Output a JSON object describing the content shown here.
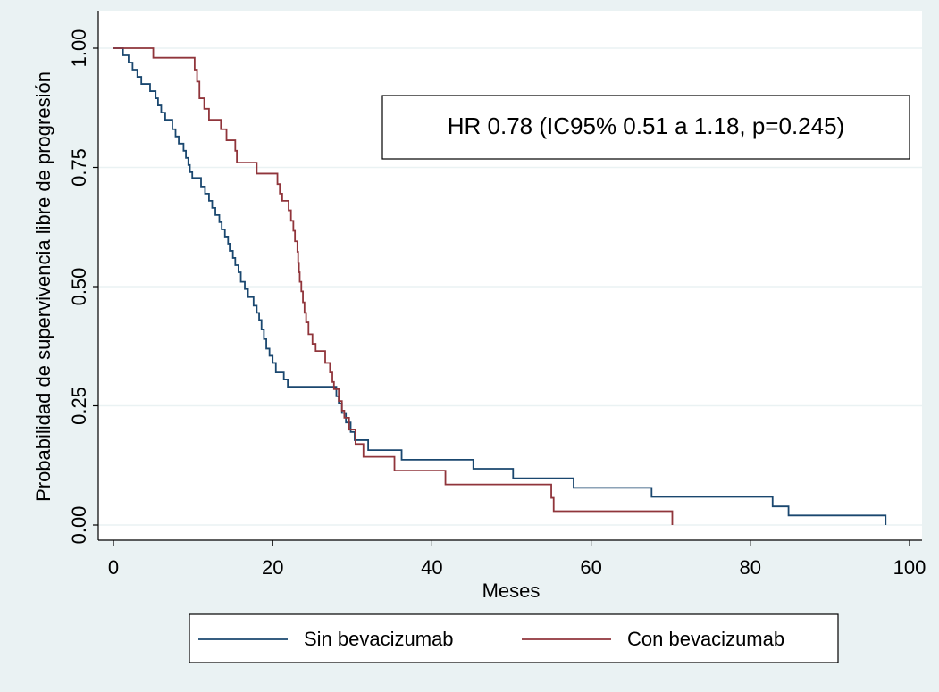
{
  "chart_data": {
    "type": "step",
    "x_label": "Meses",
    "y_label": "Probabilidad de supervivencia libre de progresión",
    "annotation": "HR 0.78 (IC95% 0.51 a 1.18, p=0.245)",
    "xlim": [
      0,
      100
    ],
    "xticks": [
      0,
      20,
      40,
      60,
      80,
      100
    ],
    "ylim": [
      0,
      1
    ],
    "yticks": [
      {
        "value": 0,
        "label": "0.00"
      },
      {
        "value": 0.25,
        "label": "0.25"
      },
      {
        "value": 0.5,
        "label": "0.50"
      },
      {
        "value": 0.75,
        "label": "0.75"
      },
      {
        "value": 1,
        "label": "1.00"
      }
    ],
    "grid": true,
    "legend": "bottom",
    "series": [
      {
        "name": "Sin bevacizumab",
        "color": "#1a476f",
        "x": [
          0,
          1.2,
          1.9,
          2.4,
          3.0,
          3.5,
          4.6,
          5.3,
          5.6,
          6.0,
          6.5,
          7.4,
          7.8,
          8.2,
          8.8,
          9.1,
          9.4,
          9.6,
          9.9,
          11.0,
          11.5,
          12.0,
          12.4,
          12.8,
          13.3,
          13.6,
          14.0,
          14.4,
          14.6,
          15.0,
          15.3,
          15.7,
          16.0,
          16.5,
          16.9,
          17.6,
          18.0,
          18.3,
          18.6,
          18.9,
          19.2,
          19.6,
          20.0,
          20.4,
          21.4,
          21.9,
          28.0,
          28.3,
          28.7,
          29.2,
          29.8,
          30.3,
          32.0,
          36.2,
          45.2,
          50.2,
          57.8,
          67.6,
          82.8,
          84.8,
          97.0
        ],
        "values": [
          1.0,
          0.985,
          0.97,
          0.955,
          0.94,
          0.925,
          0.91,
          0.895,
          0.88,
          0.865,
          0.85,
          0.83,
          0.815,
          0.8,
          0.785,
          0.77,
          0.755,
          0.74,
          0.728,
          0.71,
          0.695,
          0.68,
          0.665,
          0.65,
          0.635,
          0.62,
          0.605,
          0.59,
          0.575,
          0.56,
          0.545,
          0.53,
          0.51,
          0.495,
          0.478,
          0.46,
          0.445,
          0.43,
          0.41,
          0.39,
          0.37,
          0.355,
          0.34,
          0.32,
          0.305,
          0.29,
          0.27,
          0.255,
          0.235,
          0.215,
          0.195,
          0.178,
          0.157,
          0.137,
          0.118,
          0.098,
          0.078,
          0.059,
          0.039,
          0.02,
          0.0
        ]
      },
      {
        "name": "Con bevacizumab",
        "color": "#90353b",
        "x": [
          0,
          5.0,
          10.2,
          10.5,
          10.8,
          11.4,
          12.0,
          13.5,
          14.2,
          15.3,
          15.5,
          18.0,
          20.6,
          20.9,
          21.2,
          22.0,
          22.3,
          22.6,
          22.8,
          23.1,
          23.2,
          23.3,
          23.4,
          23.6,
          23.8,
          24.0,
          24.2,
          24.5,
          25.0,
          25.4,
          26.6,
          27.2,
          27.5,
          27.7,
          28.3,
          28.7,
          29.0,
          29.6,
          30.4,
          31.4,
          35.3,
          41.7,
          55.0,
          55.3,
          70.2
        ],
        "values": [
          1.0,
          0.98,
          0.955,
          0.93,
          0.895,
          0.873,
          0.85,
          0.83,
          0.807,
          0.785,
          0.76,
          0.737,
          0.715,
          0.695,
          0.68,
          0.66,
          0.638,
          0.617,
          0.595,
          0.573,
          0.55,
          0.53,
          0.51,
          0.49,
          0.467,
          0.445,
          0.425,
          0.4,
          0.38,
          0.365,
          0.34,
          0.32,
          0.3,
          0.285,
          0.26,
          0.24,
          0.225,
          0.2,
          0.17,
          0.143,
          0.114,
          0.085,
          0.057,
          0.029,
          0.0
        ]
      }
    ]
  }
}
